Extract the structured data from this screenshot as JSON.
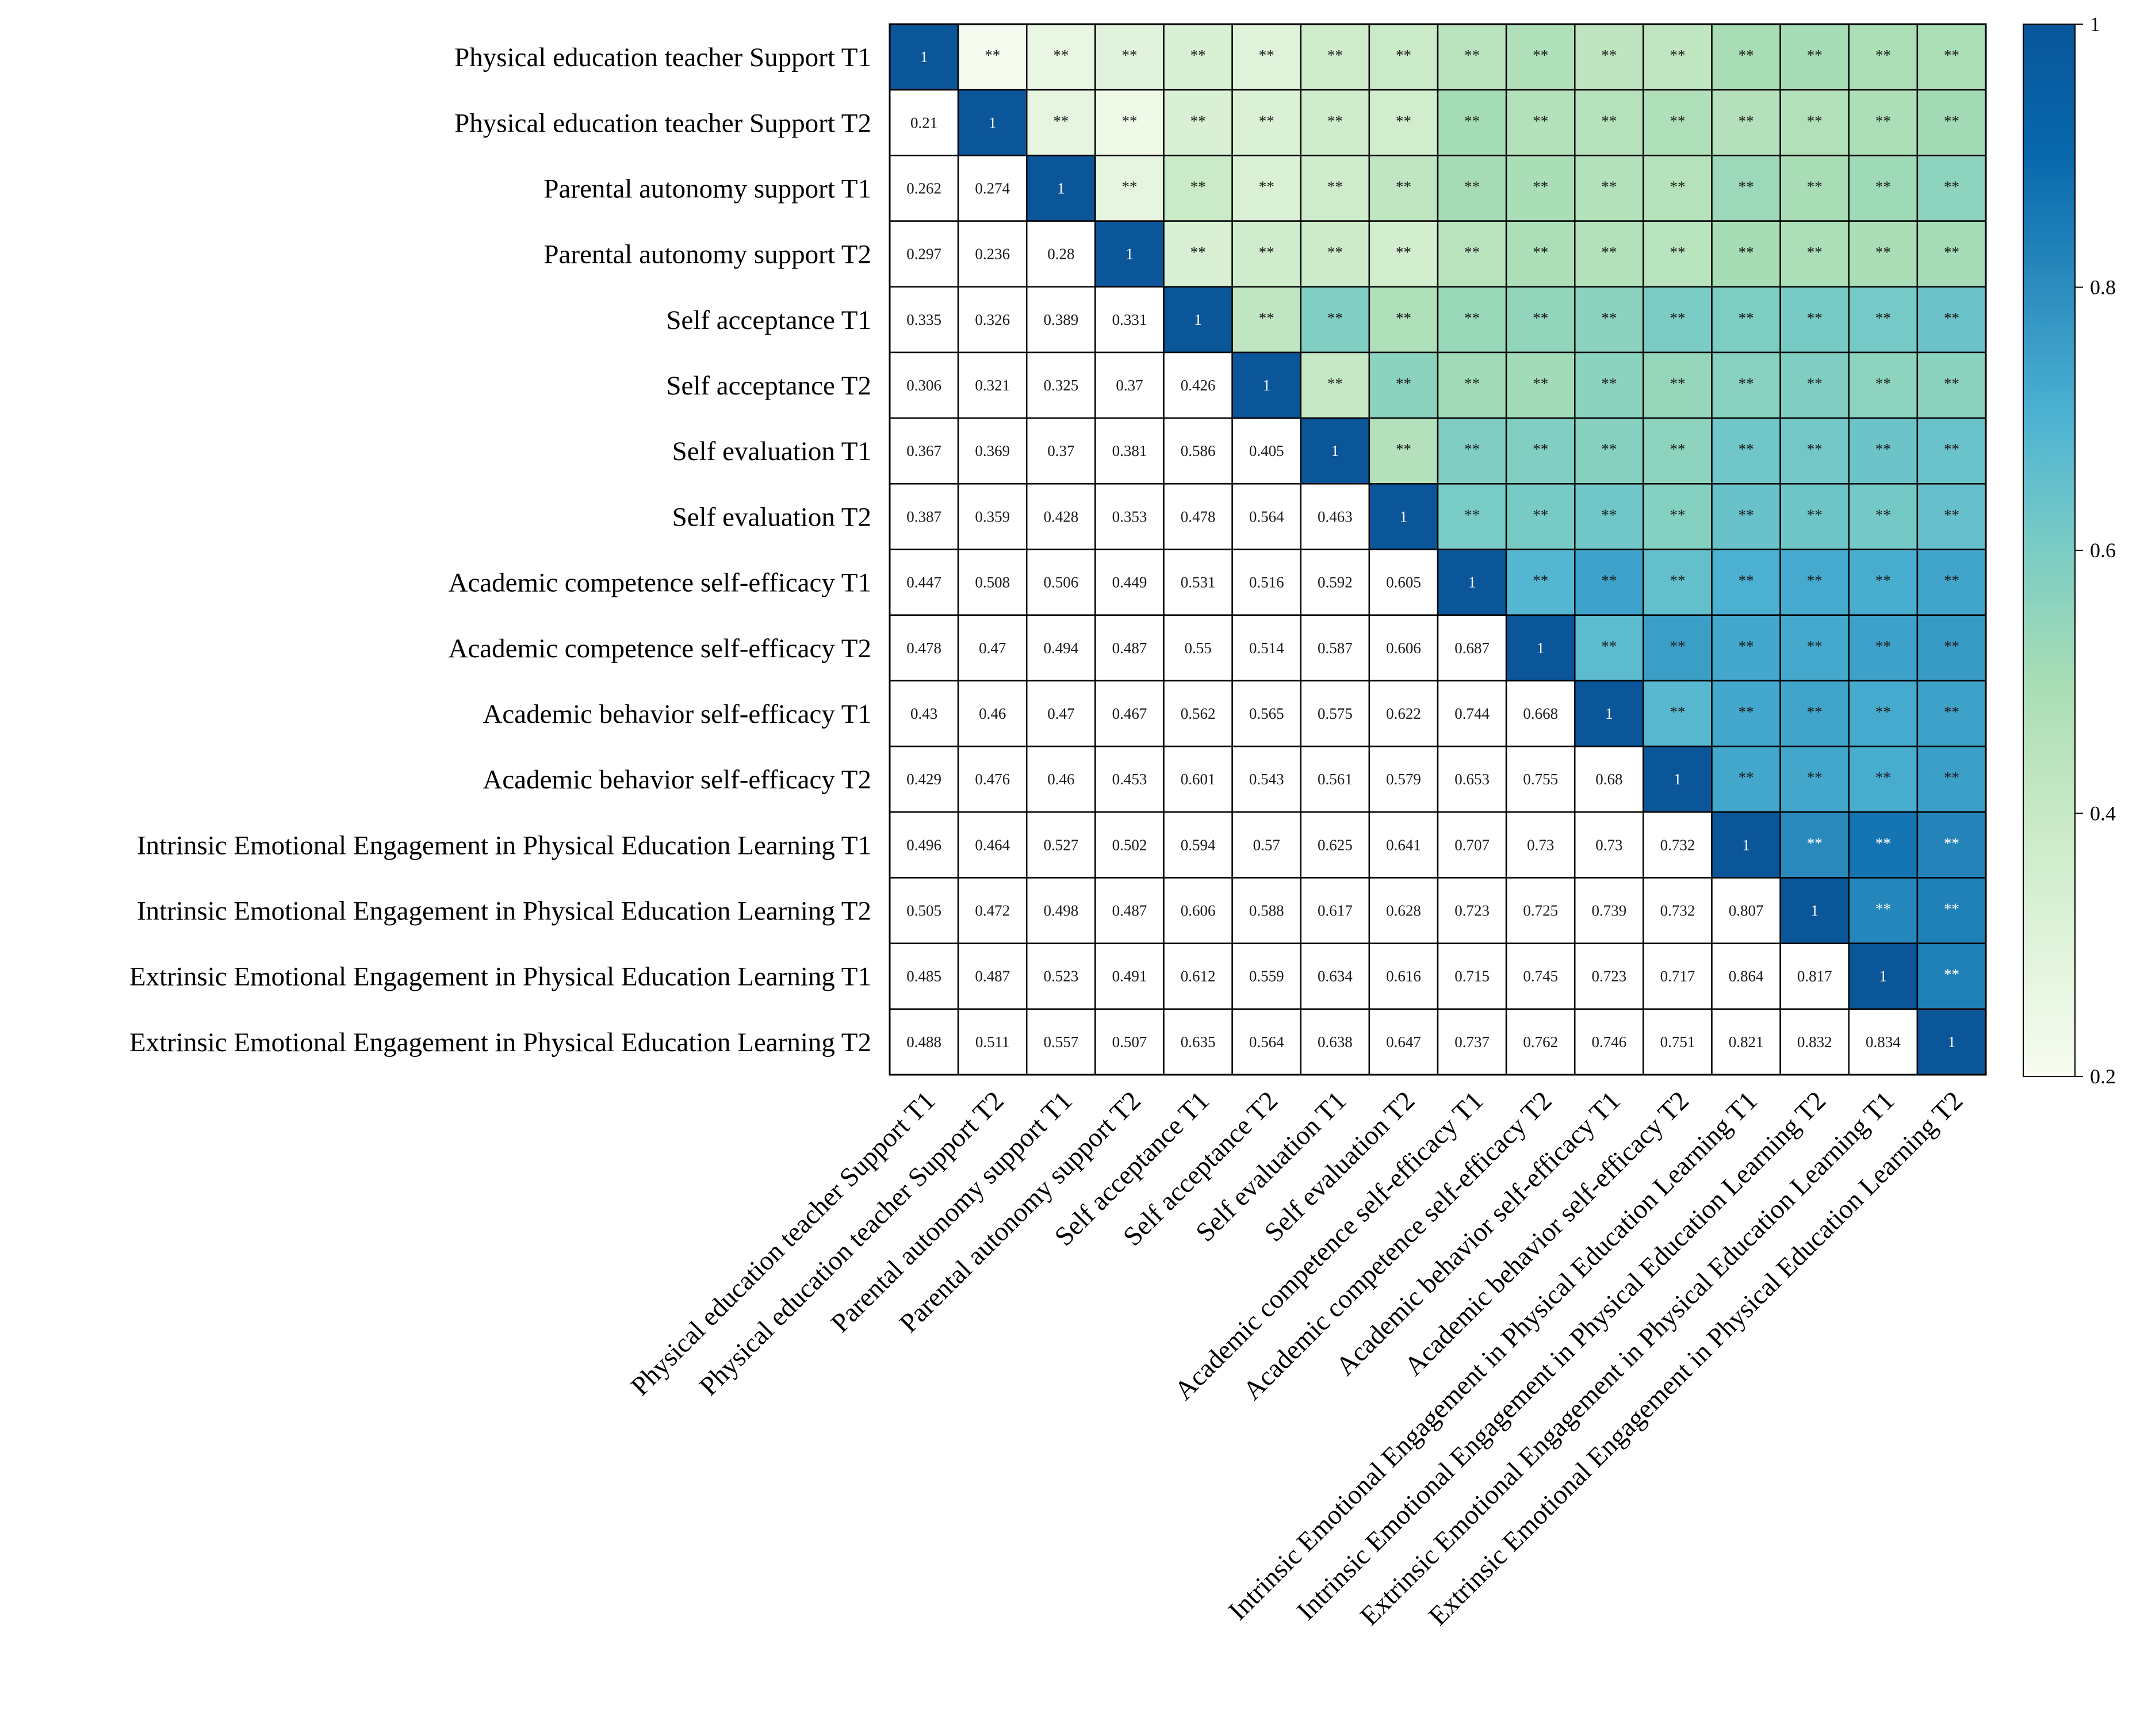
{
  "chart_data": {
    "type": "heatmap",
    "title": "",
    "variables": [
      "Physical education teacher Support T1",
      "Physical education teacher Support T2",
      "Parental autonomy support T1",
      "Parental autonomy support T2",
      "Self acceptance T1",
      "Self acceptance T2",
      "Self evaluation T1",
      "Self evaluation T2",
      "Academic competence self-efficacy T1",
      "Academic competence self-efficacy T2",
      "Academic behavior self-efficacy T1",
      "Academic behavior self-efficacy T2",
      "Intrinsic Emotional Engagement in Physical Education Learning T1",
      "Intrinsic Emotional Engagement in Physical Education Learning T2",
      "Extrinsic Emotional Engagement in Physical Education Learning T1",
      "Extrinsic Emotional Engagement in Physical Education Learning T2"
    ],
    "matrix": [
      [
        1,
        0.21,
        0.262,
        0.297,
        0.335,
        0.306,
        0.367,
        0.387,
        0.447,
        0.478,
        0.43,
        0.429,
        0.496,
        0.505,
        0.485,
        0.488
      ],
      [
        0.21,
        1,
        0.274,
        0.236,
        0.326,
        0.321,
        0.369,
        0.359,
        0.508,
        0.47,
        0.46,
        0.476,
        0.464,
        0.472,
        0.487,
        0.511
      ],
      [
        0.262,
        0.274,
        1,
        0.28,
        0.389,
        0.325,
        0.37,
        0.428,
        0.506,
        0.494,
        0.47,
        0.46,
        0.527,
        0.498,
        0.523,
        0.557
      ],
      [
        0.297,
        0.236,
        0.28,
        1,
        0.331,
        0.37,
        0.381,
        0.353,
        0.449,
        0.487,
        0.467,
        0.453,
        0.502,
        0.487,
        0.491,
        0.507
      ],
      [
        0.335,
        0.326,
        0.389,
        0.331,
        1,
        0.426,
        0.586,
        0.478,
        0.531,
        0.55,
        0.562,
        0.601,
        0.594,
        0.606,
        0.612,
        0.635
      ],
      [
        0.306,
        0.321,
        0.325,
        0.37,
        0.426,
        1,
        0.405,
        0.564,
        0.516,
        0.514,
        0.565,
        0.543,
        0.57,
        0.588,
        0.559,
        0.564
      ],
      [
        0.367,
        0.369,
        0.37,
        0.381,
        0.586,
        0.405,
        1,
        0.463,
        0.592,
        0.587,
        0.575,
        0.561,
        0.625,
        0.617,
        0.634,
        0.638
      ],
      [
        0.387,
        0.359,
        0.428,
        0.353,
        0.478,
        0.564,
        0.463,
        1,
        0.605,
        0.606,
        0.622,
        0.579,
        0.641,
        0.628,
        0.616,
        0.647
      ],
      [
        0.447,
        0.508,
        0.506,
        0.449,
        0.531,
        0.516,
        0.592,
        0.605,
        1,
        0.687,
        0.744,
        0.653,
        0.707,
        0.723,
        0.715,
        0.737
      ],
      [
        0.478,
        0.47,
        0.494,
        0.487,
        0.55,
        0.514,
        0.587,
        0.606,
        0.687,
        1,
        0.668,
        0.755,
        0.73,
        0.725,
        0.745,
        0.762
      ],
      [
        0.43,
        0.46,
        0.47,
        0.467,
        0.562,
        0.565,
        0.575,
        0.622,
        0.744,
        0.668,
        1,
        0.68,
        0.73,
        0.739,
        0.723,
        0.746
      ],
      [
        0.429,
        0.476,
        0.46,
        0.453,
        0.601,
        0.543,
        0.561,
        0.579,
        0.653,
        0.755,
        0.68,
        1,
        0.732,
        0.732,
        0.717,
        0.751
      ],
      [
        0.496,
        0.464,
        0.527,
        0.502,
        0.594,
        0.57,
        0.625,
        0.641,
        0.707,
        0.73,
        0.73,
        0.732,
        1,
        0.807,
        0.864,
        0.821
      ],
      [
        0.505,
        0.472,
        0.498,
        0.487,
        0.606,
        0.588,
        0.617,
        0.628,
        0.723,
        0.725,
        0.739,
        0.732,
        0.807,
        1,
        0.817,
        0.832
      ],
      [
        0.485,
        0.487,
        0.523,
        0.491,
        0.612,
        0.559,
        0.634,
        0.616,
        0.715,
        0.745,
        0.723,
        0.717,
        0.864,
        0.817,
        1,
        0.834
      ],
      [
        0.488,
        0.511,
        0.557,
        0.507,
        0.635,
        0.564,
        0.638,
        0.647,
        0.737,
        0.762,
        0.746,
        0.751,
        0.821,
        0.832,
        0.834,
        1
      ]
    ],
    "display_texts": [
      [
        "1",
        "**",
        "**",
        "**",
        "**",
        "**",
        "**",
        "**",
        "**",
        "**",
        "**",
        "**",
        "**",
        "**",
        "**",
        "**"
      ],
      [
        "0.21",
        "1",
        "**",
        "**",
        "**",
        "**",
        "**",
        "**",
        "**",
        "**",
        "**",
        "**",
        "**",
        "**",
        "**",
        "**"
      ],
      [
        "0.262",
        "0.274",
        "1",
        "**",
        "**",
        "**",
        "**",
        "**",
        "**",
        "**",
        "**",
        "**",
        "**",
        "**",
        "**",
        "**"
      ],
      [
        "0.297",
        "0.236",
        "0.28",
        "1",
        "**",
        "**",
        "**",
        "**",
        "**",
        "**",
        "**",
        "**",
        "**",
        "**",
        "**",
        "**"
      ],
      [
        "0.335",
        "0.326",
        "0.389",
        "0.331",
        "1",
        "**",
        "**",
        "**",
        "**",
        "**",
        "**",
        "**",
        "**",
        "**",
        "**",
        "**"
      ],
      [
        "0.306",
        "0.321",
        "0.325",
        "0.37",
        "0.426",
        "1",
        "**",
        "**",
        "**",
        "**",
        "**",
        "**",
        "**",
        "**",
        "**",
        "**"
      ],
      [
        "0.367",
        "0.369",
        "0.37",
        "0.381",
        "0.586",
        "0.405",
        "1",
        "**",
        "**",
        "**",
        "**",
        "**",
        "**",
        "**",
        "**",
        "**"
      ],
      [
        "0.387",
        "0.359",
        "0.428",
        "0.353",
        "0.478",
        "0.564",
        "0.463",
        "1",
        "**",
        "**",
        "**",
        "**",
        "**",
        "**",
        "**",
        "**"
      ],
      [
        "0.447",
        "0.508",
        "0.506",
        "0.449",
        "0.531",
        "0.516",
        "0.592",
        "0.605",
        "1",
        "**",
        "**",
        "**",
        "**",
        "**",
        "**",
        "**"
      ],
      [
        "0.478",
        "0.47",
        "0.494",
        "0.487",
        "0.55",
        "0.514",
        "0.587",
        "0.606",
        "0.687",
        "1",
        "**",
        "**",
        "**",
        "**",
        "**",
        "**"
      ],
      [
        "0.43",
        "0.46",
        "0.47",
        "0.467",
        "0.562",
        "0.565",
        "0.575",
        "0.622",
        "0.744",
        "0.668",
        "1",
        "**",
        "**",
        "**",
        "**",
        "**"
      ],
      [
        "0.429",
        "0.476",
        "0.46",
        "0.453",
        "0.601",
        "0.543",
        "0.561",
        "0.579",
        "0.653",
        "0.755",
        "0.68",
        "1",
        "**",
        "**",
        "**",
        "**"
      ],
      [
        "0.496",
        "0.464",
        "0.527",
        "0.502",
        "0.594",
        "0.57",
        "0.625",
        "0.641",
        "0.707",
        "0.73",
        "0.73",
        "0.732",
        "1",
        "**",
        "**",
        "**"
      ],
      [
        "0.505",
        "0.472",
        "0.498",
        "0.487",
        "0.606",
        "0.588",
        "0.617",
        "0.628",
        "0.723",
        "0.725",
        "0.739",
        "0.732",
        "0.807",
        "1",
        "**",
        "**"
      ],
      [
        "0.485",
        "0.487",
        "0.523",
        "0.491",
        "0.612",
        "0.559",
        "0.634",
        "0.616",
        "0.715",
        "0.745",
        "0.723",
        "0.717",
        "0.864",
        "0.817",
        "1",
        "**"
      ],
      [
        "0.488",
        "0.511",
        "0.557",
        "0.507",
        "0.635",
        "0.564",
        "0.638",
        "0.647",
        "0.737",
        "0.762",
        "0.746",
        "0.751",
        "0.821",
        "0.832",
        "0.834",
        "1"
      ]
    ],
    "colorbar": {
      "range": [
        0.2,
        1
      ],
      "ticks": [
        {
          "value": 1,
          "label": "1"
        },
        {
          "value": 0.8,
          "label": "0.8"
        },
        {
          "value": 0.6,
          "label": "0.6"
        },
        {
          "value": 0.4,
          "label": "0.4"
        },
        {
          "value": 0.2,
          "label": "0.2"
        }
      ],
      "colorscale": [
        {
          "value": 0.2,
          "color": "#f7fcf0"
        },
        {
          "value": 0.3,
          "color": "#e0f3db"
        },
        {
          "value": 0.4,
          "color": "#c8e9c5"
        },
        {
          "value": 0.5,
          "color": "#a8ddb5"
        },
        {
          "value": 0.6,
          "color": "#7bccc4"
        },
        {
          "value": 0.7,
          "color": "#4eb3d3"
        },
        {
          "value": 0.8,
          "color": "#2b8cbe"
        },
        {
          "value": 0.9,
          "color": "#0868ac"
        },
        {
          "value": 1.0,
          "color": "#08559a"
        }
      ]
    },
    "colors": {
      "grid_line": "#000000",
      "lower_triangle_fill": "#ffffff",
      "diagonal_fill": "#0b5599",
      "light_text": "#ffffff",
      "dark_text": "#1a1a1a"
    }
  }
}
